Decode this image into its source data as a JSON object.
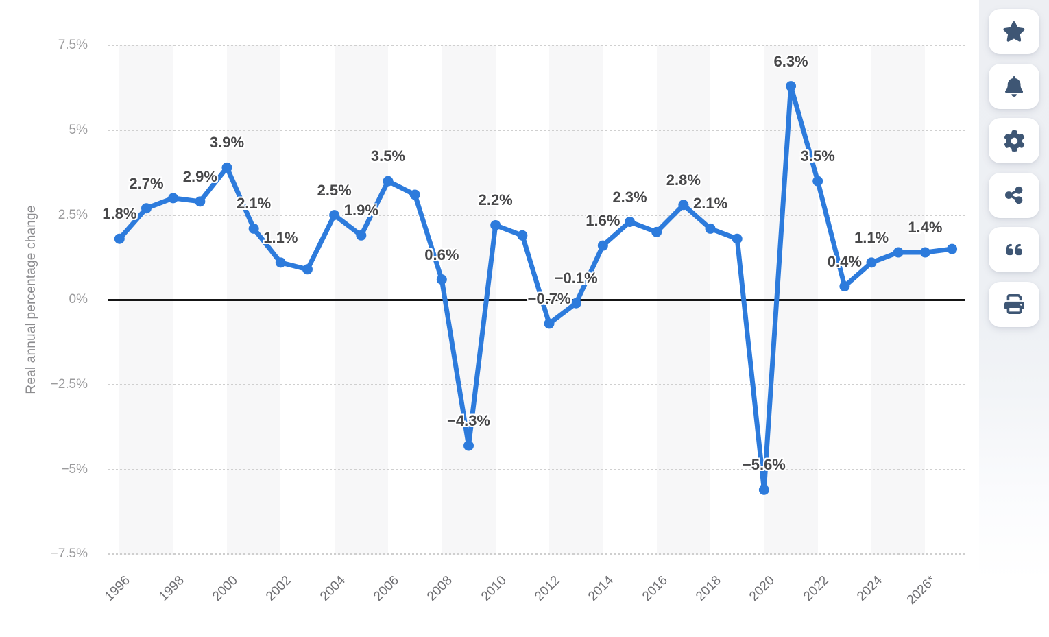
{
  "chart_data": {
    "type": "line",
    "title": "",
    "ylabel": "Real annual percentage change",
    "xlabel": "",
    "years": [
      1996,
      1997,
      1998,
      1999,
      2000,
      2001,
      2002,
      2003,
      2004,
      2005,
      2006,
      2007,
      2008,
      2009,
      2010,
      2011,
      2012,
      2013,
      2014,
      2015,
      2016,
      2017,
      2018,
      2019,
      2020,
      2021,
      2022,
      2023,
      2024,
      2025,
      2026,
      2027
    ],
    "values": [
      1.8,
      2.7,
      3.0,
      2.9,
      3.9,
      2.1,
      1.1,
      0.9,
      2.5,
      1.9,
      3.5,
      3.1,
      0.6,
      -4.3,
      2.2,
      1.9,
      -0.7,
      -0.1,
      1.6,
      2.3,
      2.0,
      2.8,
      2.1,
      1.8,
      -5.6,
      6.3,
      3.5,
      0.4,
      1.1,
      1.4,
      1.4,
      1.5
    ],
    "point_labels": [
      "1.8%",
      "2.7%",
      null,
      "2.9%",
      "3.9%",
      "2.1%",
      "1.1%",
      null,
      "2.5%",
      "1.9%",
      "3.5%",
      null,
      "0.6%",
      "−4.3%",
      "2.2%",
      null,
      "−0.7%",
      "−0.1%",
      "1.6%",
      "2.3%",
      null,
      "2.8%",
      "2.1%",
      null,
      "−5.6%",
      "6.3%",
      "3.5%",
      "0.4%",
      "1.1%",
      null,
      "1.4%",
      null
    ],
    "x_tick_years": [
      1996,
      1998,
      2000,
      2002,
      2004,
      2006,
      2008,
      2010,
      2012,
      2014,
      2016,
      2018,
      2020,
      2022,
      2024,
      2026
    ],
    "x_tick_labels": [
      "1996",
      "1998",
      "2000",
      "2002",
      "2004",
      "2006",
      "2008",
      "2010",
      "2012",
      "2014",
      "2016",
      "2018",
      "2020",
      "2022",
      "2024",
      "2026*"
    ],
    "y_tick_values": [
      7.5,
      5,
      2.5,
      0,
      -2.5,
      -5,
      -7.5
    ],
    "y_tick_labels": [
      "7.5%",
      "5%",
      "2.5%",
      "0%",
      "−2.5%",
      "−5%",
      "−7.5%"
    ],
    "ylim": [
      -7.5,
      7.5
    ],
    "grid": "horizontal-dotted",
    "legend_position": "none",
    "line_color": "#2d7bdc",
    "marker_color": "#2d7bdc",
    "label_color": "#48484a",
    "zero_line_color": "#151515",
    "band_color": "#f7f7f8",
    "grid_color": "#cfcfcf"
  },
  "sidebar": {
    "icon_color": "#3e5674",
    "buttons": [
      {
        "id": "favorite",
        "icon": "star-icon"
      },
      {
        "id": "notification",
        "icon": "bell-icon"
      },
      {
        "id": "settings",
        "icon": "gear-icon"
      },
      {
        "id": "share",
        "icon": "share-icon"
      },
      {
        "id": "cite",
        "icon": "quote-icon"
      },
      {
        "id": "print",
        "icon": "printer-icon"
      }
    ]
  }
}
